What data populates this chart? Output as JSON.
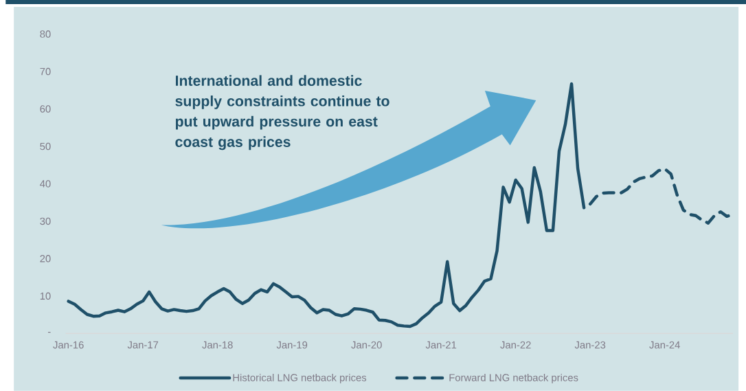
{
  "chart_data": {
    "type": "line",
    "annotations": [
      "International and domestic supply constraints continue to put upward pressure on east coast gas prices"
    ],
    "xlim": [
      "2015-12-18",
      "2024-12"
    ],
    "xticks": [
      {
        "value": "2016-01",
        "label": "Jan-16"
      },
      {
        "value": "2017-01",
        "label": "Jan-17"
      },
      {
        "value": "2018-01",
        "label": "Jan-18"
      },
      {
        "value": "2019-01",
        "label": "Jan-19"
      },
      {
        "value": "2020-01",
        "label": "Jan-20"
      },
      {
        "value": "2021-01",
        "label": "Jan-21"
      },
      {
        "value": "2022-01",
        "label": "Jan-22"
      },
      {
        "value": "2023-01",
        "label": "Jan-23"
      },
      {
        "value": "2024-01",
        "label": "Jan-24"
      }
    ],
    "ylim": [
      0,
      80
    ],
    "yticks": [
      {
        "value": 0,
        "label": "-"
      },
      10,
      20,
      30,
      40,
      50,
      60,
      70,
      80
    ],
    "legend": "bottom",
    "series": [
      {
        "name": "Historical LNG netback prices",
        "color": "#1f5069",
        "line_style": "solid",
        "x": [
          "2016-01",
          "2016-02",
          "2016-03",
          "2016-04",
          "2016-05",
          "2016-06",
          "2016-07",
          "2016-08",
          "2016-09",
          "2016-10",
          "2016-11",
          "2016-12",
          "2017-01",
          "2017-02",
          "2017-03",
          "2017-04",
          "2017-05",
          "2017-06",
          "2017-07",
          "2017-08",
          "2017-09",
          "2017-10",
          "2017-11",
          "2017-12",
          "2018-01",
          "2018-02",
          "2018-03",
          "2018-04",
          "2018-05",
          "2018-06",
          "2018-07",
          "2018-08",
          "2018-09",
          "2018-10",
          "2018-11",
          "2018-12",
          "2019-01",
          "2019-02",
          "2019-03",
          "2019-04",
          "2019-05",
          "2019-06",
          "2019-07",
          "2019-08",
          "2019-09",
          "2019-10",
          "2019-11",
          "2019-12",
          "2020-01",
          "2020-02",
          "2020-03",
          "2020-04",
          "2020-05",
          "2020-06",
          "2020-07",
          "2020-08",
          "2020-09",
          "2020-10",
          "2020-11",
          "2020-12",
          "2021-01",
          "2021-02",
          "2021-03",
          "2021-04",
          "2021-05",
          "2021-06",
          "2021-07",
          "2021-08",
          "2021-09",
          "2021-10",
          "2021-11",
          "2021-12",
          "2022-01",
          "2022-02",
          "2022-03",
          "2022-04",
          "2022-05",
          "2022-06",
          "2022-07",
          "2022-08",
          "2022-09",
          "2022-10",
          "2022-11",
          "2022-12"
        ],
        "values": [
          8.6,
          7.8,
          6.4,
          5.1,
          4.6,
          4.7,
          5.5,
          5.8,
          6.2,
          5.8,
          6.6,
          7.8,
          8.7,
          11.1,
          8.5,
          6.6,
          6.0,
          6.4,
          6.1,
          5.9,
          6.1,
          6.6,
          8.7,
          10.1,
          11.1,
          12.0,
          11.1,
          9.1,
          8.0,
          8.9,
          10.7,
          11.7,
          11.1,
          13.3,
          12.4,
          11.1,
          9.8,
          9.9,
          8.9,
          6.9,
          5.5,
          6.4,
          6.2,
          5.1,
          4.7,
          5.2,
          6.6,
          6.5,
          6.2,
          5.7,
          3.6,
          3.5,
          3.1,
          2.2,
          2.0,
          1.9,
          2.6,
          4.2,
          5.5,
          7.3,
          8.4,
          19.2,
          8.0,
          6.1,
          7.5,
          9.7,
          11.6,
          14.0,
          14.6,
          22.1,
          39.1,
          35.1,
          41.0,
          38.7,
          29.7,
          44.3,
          37.9,
          27.5,
          27.5,
          48.7,
          55.9,
          66.7,
          44.1,
          33.6
        ]
      },
      {
        "name": "Forward LNG netback prices",
        "color": "#1f5069",
        "line_style": "dashed",
        "x": [
          "2023-01",
          "2023-02",
          "2023-03",
          "2023-04",
          "2023-05",
          "2023-06",
          "2023-07",
          "2023-08",
          "2023-09",
          "2023-10",
          "2023-11",
          "2023-12",
          "2024-01",
          "2024-02",
          "2024-03",
          "2024-04",
          "2024-05",
          "2024-06",
          "2024-07",
          "2024-08",
          "2024-09",
          "2024-10",
          "2024-11",
          "2024-12"
        ],
        "values": [
          34.6,
          36.6,
          37.5,
          37.6,
          37.6,
          37.6,
          38.6,
          40.5,
          41.4,
          41.8,
          42.1,
          43.5,
          44.0,
          42.6,
          37.0,
          33.0,
          31.8,
          31.5,
          30.3,
          29.5,
          31.5,
          32.5,
          31.3,
          31.8
        ]
      }
    ]
  }
}
